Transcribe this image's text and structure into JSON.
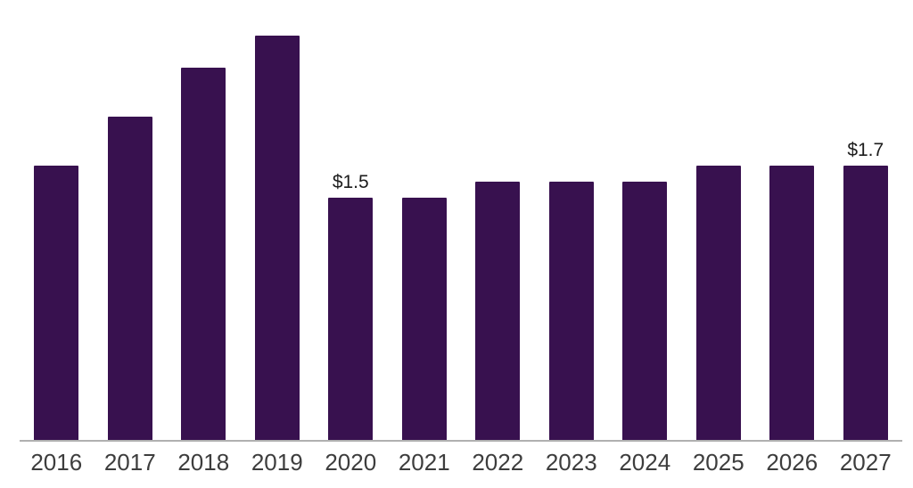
{
  "chart_data": {
    "type": "bar",
    "title": "",
    "xlabel": "",
    "ylabel": "",
    "categories": [
      "2016",
      "2017",
      "2018",
      "2019",
      "2020",
      "2021",
      "2022",
      "2023",
      "2024",
      "2025",
      "2026",
      "2027"
    ],
    "values": [
      1.7,
      2.0,
      2.3,
      2.5,
      1.5,
      1.5,
      1.6,
      1.6,
      1.6,
      1.7,
      1.7,
      1.7
    ],
    "value_labels": [
      "",
      "",
      "",
      "",
      "$1.5",
      "",
      "",
      "",
      "",
      "",
      "",
      "$1.7"
    ],
    "ylim": [
      0,
      2.5
    ],
    "grid": false,
    "legend": false,
    "colors": {
      "bar": "#38114F",
      "axis_line": "#B0B0B0",
      "tick_label": "#3D3D3D",
      "value_label": "#1C1C1C",
      "background": "#FFFFFF"
    }
  }
}
